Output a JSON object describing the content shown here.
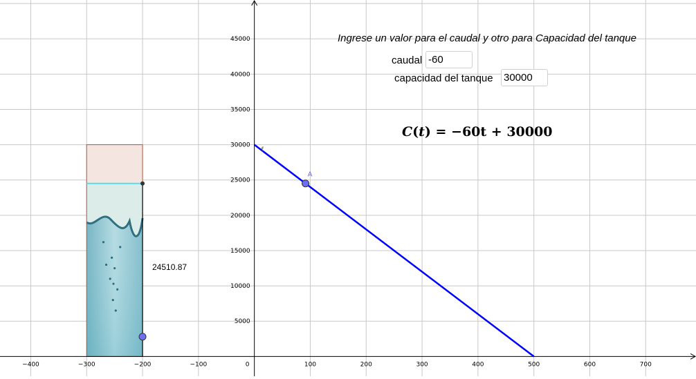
{
  "prompt_text": "Ingrese un valor para el caudal y otro para Capacidad del tanque",
  "inputs": {
    "caudal": {
      "label": "caudal",
      "value": "-60"
    },
    "capacidad": {
      "label": "capacidad del tanque",
      "value": "30000"
    }
  },
  "formula": {
    "lhs_fn": "C",
    "lhs_var": "t",
    "rhs": "−60t + 30000"
  },
  "tank_value": "24510.87",
  "point_label": "A",
  "function_label": "f",
  "chart_data": {
    "type": "line",
    "x_ticks": [
      -400,
      -300,
      -200,
      -100,
      0,
      100,
      200,
      300,
      400,
      500,
      600,
      700
    ],
    "y_ticks": [
      5000,
      10000,
      15000,
      20000,
      25000,
      30000,
      35000,
      40000,
      45000
    ],
    "xlim": [
      -455,
      790
    ],
    "ylim": [
      -2800,
      50500
    ],
    "grid": true,
    "series": [
      {
        "x": [
          0,
          500
        ],
        "y": [
          30000,
          0
        ],
        "color": "#0000ff"
      }
    ],
    "point_A": {
      "x": 91.5,
      "y": 24510.87
    },
    "tank": {
      "x_range": [
        -300,
        -200
      ],
      "capacity": 30000,
      "level": 24510.87,
      "slider_y": 2800
    },
    "colors": {
      "grid": "#c8c8c8",
      "axis": "#000000",
      "line": "#0000ff",
      "point": "#6e6ef5",
      "tank_border": "#b5523a",
      "tank_fill": "#f5e5e0",
      "level_line": "#4fe0f0"
    }
  }
}
